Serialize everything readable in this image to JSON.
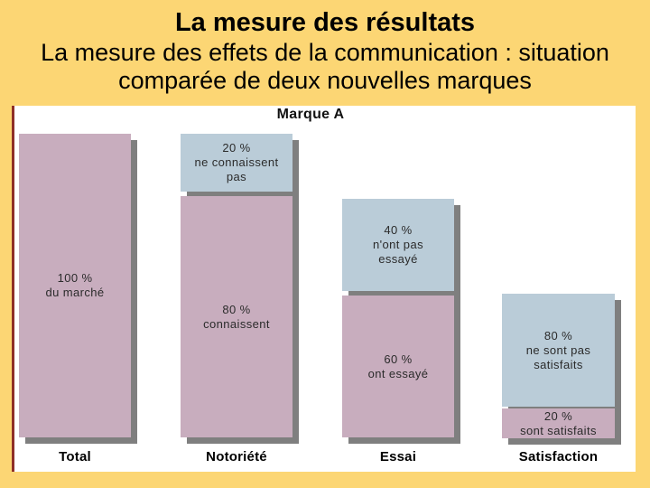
{
  "slide": {
    "title": "La mesure des résultats",
    "subtitle": "La mesure des effets de la communication : situation comparée de deux nouvelles marques",
    "subtitle_lines": [
      "La mesure des effets de la communication : situation",
      "comparée de deux nouvelles marques"
    ]
  },
  "colors": {
    "background": "#FCD674",
    "panel": "#FFFFFF",
    "pink": "#C8ADBE",
    "blue": "#BACCD8",
    "shadow": "#7F7F7F",
    "accent_line": "#8E2F27",
    "text": "#1A1A1A"
  },
  "chart_data": {
    "type": "bar",
    "title": "Marque A",
    "orientation": "vertical",
    "ylim": [
      0,
      100
    ],
    "grid": false,
    "legend": false,
    "categories": [
      "Total",
      "Notoriété",
      "Essai",
      "Satisfaction"
    ],
    "series": [
      {
        "name": "segment supérieur (bleu)",
        "values": [
          null,
          20,
          40,
          80
        ]
      },
      {
        "name": "segment inférieur (rose)",
        "values": [
          100,
          80,
          60,
          20
        ]
      }
    ],
    "columns": [
      {
        "category": "Total",
        "segments": [
          {
            "value_pct": 100,
            "color_key": "pink",
            "label_lines": [
              "100 %",
              "du marché"
            ]
          }
        ]
      },
      {
        "category": "Notoriété",
        "segments": [
          {
            "value_pct": 20,
            "color_key": "blue",
            "label_lines": [
              "20 %",
              "ne connaissent",
              "pas"
            ]
          },
          {
            "value_pct": 80,
            "color_key": "pink",
            "label_lines": [
              "80 %",
              "connaissent"
            ]
          }
        ]
      },
      {
        "category": "Essai",
        "segments": [
          {
            "value_pct": 40,
            "color_key": "blue",
            "label_lines": [
              "40 %",
              "n'ont pas",
              "essayé"
            ]
          },
          {
            "value_pct": 60,
            "color_key": "pink",
            "label_lines": [
              "60 %",
              "ont essayé"
            ]
          }
        ]
      },
      {
        "category": "Satisfaction",
        "segments": [
          {
            "value_pct": 80,
            "color_key": "blue",
            "label_lines": [
              "80 %",
              "ne sont pas",
              "satisfaits"
            ]
          },
          {
            "value_pct": 20,
            "color_key": "pink",
            "label_lines": [
              "20 %",
              "sont satisfaits"
            ]
          }
        ]
      }
    ]
  }
}
